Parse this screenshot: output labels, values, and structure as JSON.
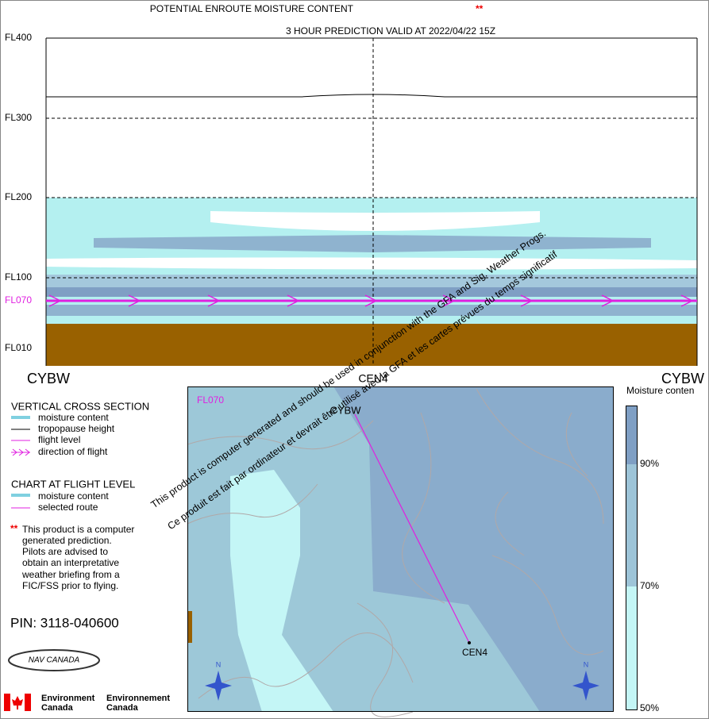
{
  "header": {
    "title": "POTENTIAL ENROUTE MOISTURE CONTENT",
    "title_mark": "**",
    "subtitle": "3 HOUR PREDICTION VALID AT  2022/04/22 15Z"
  },
  "cross_section": {
    "levels": [
      "FL400",
      "FL300",
      "FL200",
      "FL100",
      "FL010"
    ],
    "flight_level": "FL070",
    "route": [
      "CYBW",
      "CEN4",
      "CYBW"
    ]
  },
  "legend": {
    "section1_title": "VERTICAL CROSS SECTION",
    "section1_items": [
      "moisture content",
      "tropopause height",
      "flight level",
      "direction of flight"
    ],
    "section2_title": "CHART AT FLIGHT LEVEL",
    "section2_items": [
      "moisture content",
      "selected route"
    ],
    "note_mark": "**",
    "note": [
      "This product is a computer",
      "generated prediction.",
      "Pilots are advised to",
      "obtain an interpretative",
      "weather briefing from a",
      "FIC/FSS prior to flying."
    ],
    "pin": "PIN: 3118-040600"
  },
  "map": {
    "flight_level": "FL070",
    "origin": "CYBW",
    "destination": "CEN4",
    "north": "N"
  },
  "scale": {
    "title": "Moisture conten",
    "labels": [
      "90%",
      "70%",
      "50%"
    ]
  },
  "disclaimer": [
    "This product is computer generated and should be used in conjunction with the GFA and Sig. Weather Progs.",
    "Ce produit est fait par ordinateur et devrait être utilisé avec la GFA et les cartes prévues du temps significatif"
  ],
  "logos": {
    "nav_canada": "NAV CANADA",
    "env_en": [
      "Environment",
      "Canada"
    ],
    "env_fr": [
      "Environnement",
      "Canada"
    ]
  }
}
